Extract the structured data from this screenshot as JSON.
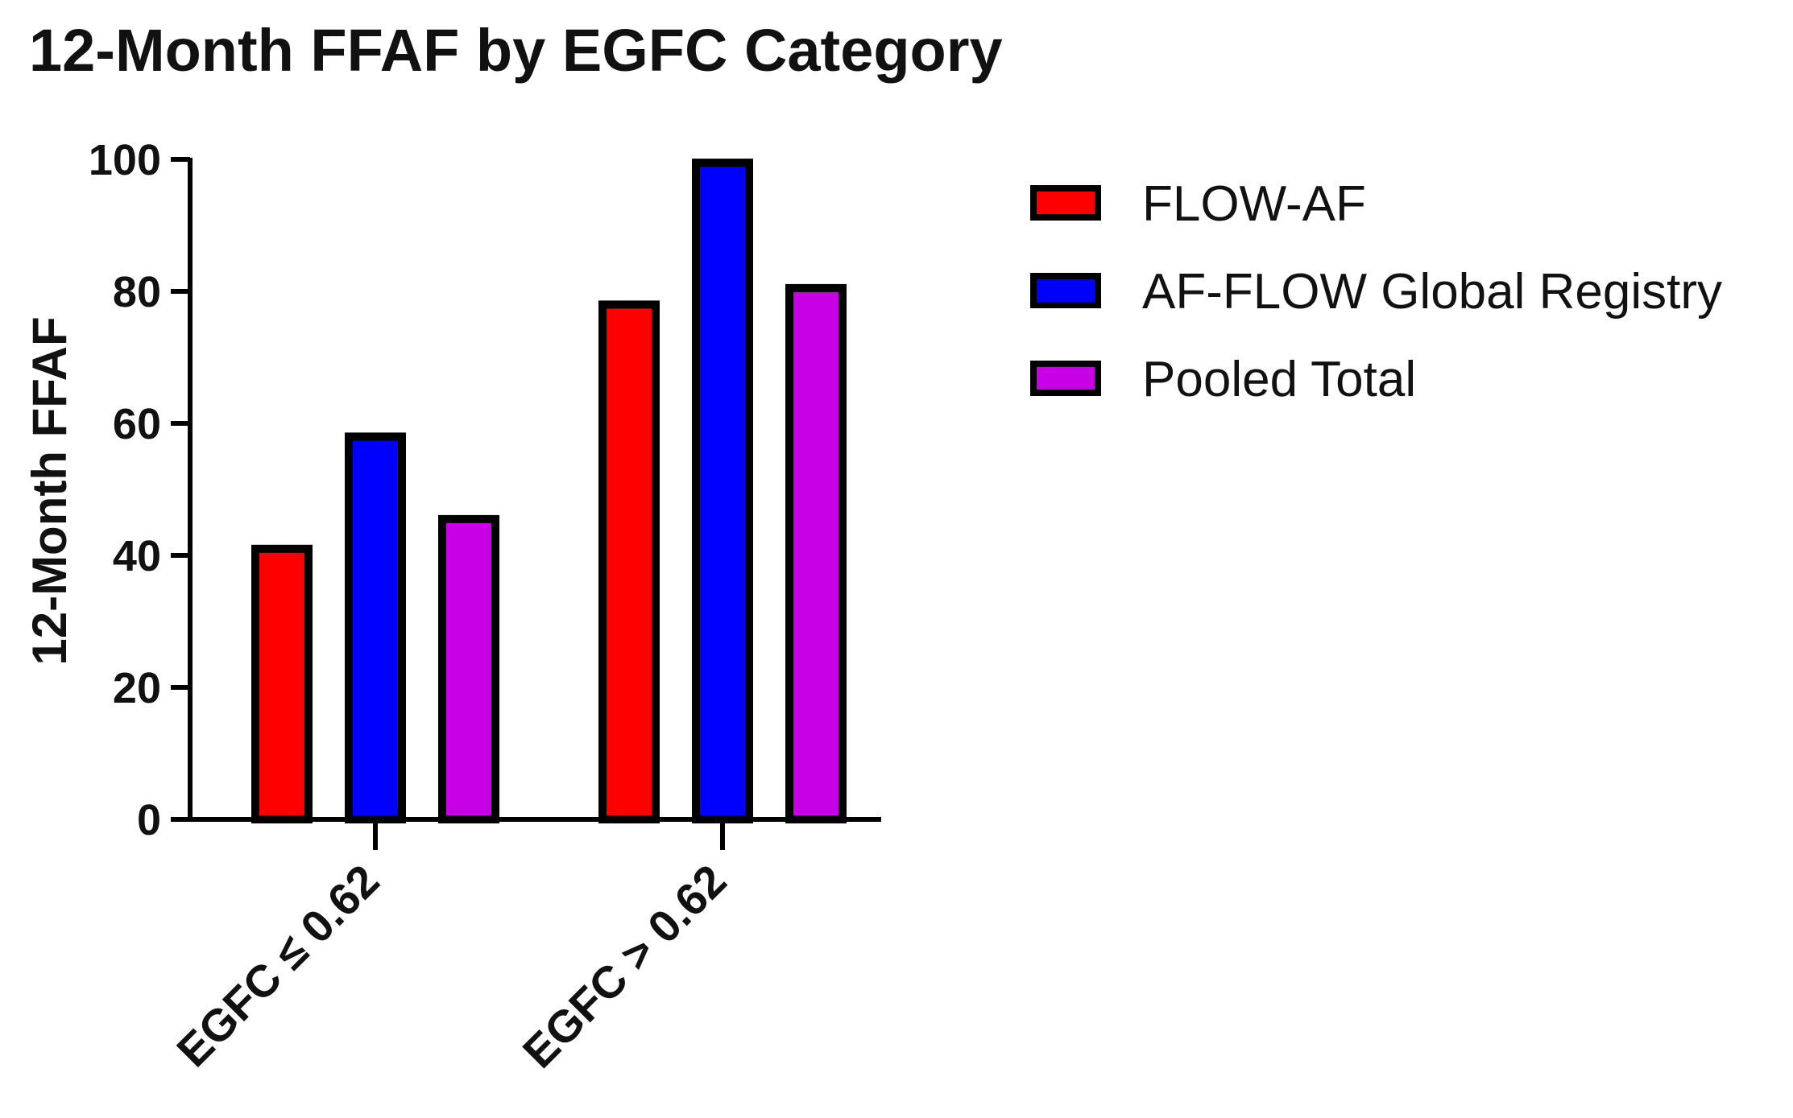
{
  "chart_data": {
    "type": "bar",
    "title": "12-Month FFAF by EGFC Category",
    "xlabel": "",
    "ylabel": "12-Month FFAF",
    "ylim": [
      0,
      100
    ],
    "yticks": [
      "0",
      "20",
      "40",
      "60",
      "80",
      "100"
    ],
    "categories": [
      "EGFC ≤ 0.62",
      "EGFC > 0.62"
    ],
    "series": [
      {
        "name": "FLOW-AF",
        "color": "#ff0000",
        "values": [
          41,
          78
        ]
      },
      {
        "name": "AF-FLOW Global Registry",
        "color": "#0000ff",
        "values": [
          58,
          99.5
        ]
      },
      {
        "name": "Pooled Total",
        "color": "#c800e6",
        "values": [
          45.5,
          80.5
        ]
      }
    ],
    "grid": false,
    "legend_position": "top-right"
  }
}
